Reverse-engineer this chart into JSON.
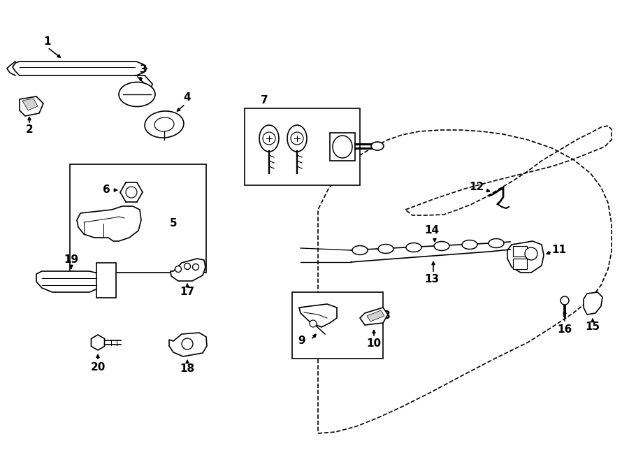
{
  "background": "#ffffff",
  "line_color": "#000000",
  "lw": 1.2
}
